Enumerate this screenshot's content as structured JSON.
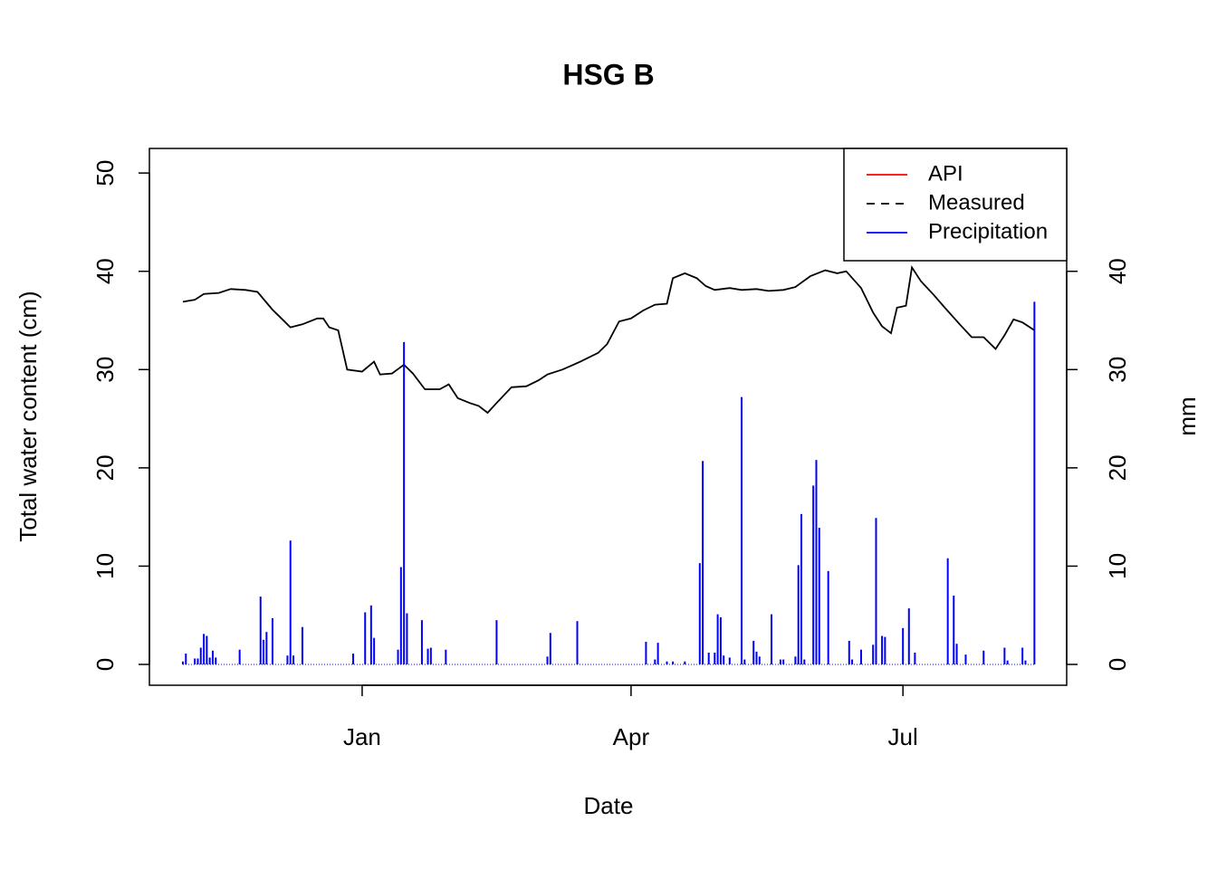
{
  "chart_data": {
    "type": "line",
    "title": "HSG B",
    "x_label": "Date",
    "y_label": "Total water content (cm)",
    "y2_label": "mm",
    "xlim": [
      -11.2,
      295.8
    ],
    "xticks": [
      {
        "value": 60,
        "label": "Jan"
      },
      {
        "value": 150,
        "label": "Apr"
      },
      {
        "value": 241,
        "label": "Jul"
      }
    ],
    "ylim": [
      -2.12,
      52.5
    ],
    "yticks": [
      0,
      10,
      20,
      30,
      40,
      50
    ],
    "y2lim": [
      -2.12,
      52.5
    ],
    "y2ticks": [
      0,
      10,
      20,
      30,
      40
    ],
    "legend": {
      "position": "topright",
      "items": [
        {
          "name": "API",
          "color": "#ff0000",
          "dash": false
        },
        {
          "name": "Measured",
          "color": "#000000",
          "dash": true
        },
        {
          "name": "Precipitation",
          "color": "#0000ff",
          "dash": false
        }
      ]
    },
    "series": [
      {
        "type": "line",
        "color": "#000000",
        "x": [
          0,
          4,
          7,
          12,
          16,
          21,
          25,
          30,
          33,
          36,
          40,
          45,
          47,
          49,
          52,
          55,
          60,
          64,
          66,
          70,
          74,
          77,
          81,
          86,
          89,
          92,
          96,
          99,
          102,
          105,
          110,
          115,
          119,
          122,
          127,
          133,
          139,
          142,
          146,
          150,
          154,
          158,
          162,
          164,
          168,
          172,
          175,
          178,
          183,
          187,
          192,
          196,
          201,
          205,
          210,
          215,
          219,
          222,
          227,
          231,
          234,
          237,
          239,
          242,
          244,
          247,
          251,
          255,
          260,
          264,
          268,
          272,
          275,
          278,
          281,
          285
        ],
        "values": [
          36.9,
          37.1,
          37.7,
          37.8,
          38.2,
          38.1,
          37.9,
          36.1,
          35.2,
          34.3,
          34.6,
          35.2,
          35.2,
          34.3,
          34.0,
          30.0,
          29.8,
          30.8,
          29.5,
          29.6,
          30.5,
          29.6,
          28.0,
          28.0,
          28.5,
          27.1,
          26.6,
          26.3,
          25.6,
          26.6,
          28.2,
          28.3,
          28.9,
          29.5,
          30.0,
          30.8,
          31.7,
          32.6,
          34.9,
          35.2,
          36.0,
          36.6,
          36.7,
          39.3,
          39.8,
          39.3,
          38.5,
          38.1,
          38.3,
          38.1,
          38.2,
          38.0,
          38.1,
          38.4,
          39.5,
          40.1,
          39.8,
          40.0,
          38.3,
          35.8,
          34.4,
          33.7,
          36.3,
          36.5,
          40.4,
          39.0,
          37.7,
          36.3,
          34.6,
          33.3,
          33.3,
          32.1,
          33.5,
          35.1,
          34.8,
          34.0
        ]
      },
      {
        "type": "bar",
        "axis": "y2",
        "color": "#0000ff",
        "x": [
          0,
          1,
          4,
          5,
          6,
          7,
          8,
          9,
          10,
          11,
          19,
          26,
          27,
          28,
          30,
          35,
          36,
          37,
          40,
          57,
          61,
          63,
          64,
          72,
          73,
          74,
          75,
          80,
          82,
          83,
          88,
          105,
          122,
          123,
          132,
          155,
          158,
          159,
          162,
          164,
          168,
          173,
          174,
          176,
          178,
          179,
          180,
          181,
          183,
          187,
          188,
          191,
          192,
          193,
          197,
          200,
          201,
          205,
          206,
          207,
          208,
          211,
          212,
          213,
          216,
          223,
          224,
          227,
          231,
          232,
          234,
          235,
          241,
          243,
          245,
          256,
          258,
          259,
          262,
          268,
          275,
          276,
          281,
          282,
          285
        ],
        "values": [
          0.3,
          1.1,
          0.6,
          0.6,
          1.7,
          3.1,
          2.9,
          0.7,
          1.4,
          0.7,
          1.5,
          6.9,
          2.5,
          3.3,
          4.7,
          0.9,
          12.6,
          0.9,
          3.8,
          1.1,
          5.3,
          6.0,
          2.7,
          1.5,
          9.9,
          32.8,
          5.2,
          4.5,
          1.6,
          1.7,
          1.5,
          4.5,
          0.8,
          3.2,
          4.4,
          2.3,
          0.5,
          2.2,
          0.3,
          0.3,
          0.3,
          10.3,
          20.7,
          1.2,
          1.2,
          5.1,
          4.8,
          0.9,
          0.7,
          27.2,
          0.5,
          2.4,
          1.3,
          0.8,
          5.1,
          0.5,
          0.5,
          0.8,
          10.1,
          15.3,
          0.5,
          18.2,
          20.8,
          13.9,
          9.5,
          2.4,
          0.5,
          1.5,
          2.0,
          14.9,
          2.9,
          2.8,
          3.7,
          5.7,
          1.2,
          10.8,
          7.0,
          2.1,
          1.0,
          1.4,
          1.7,
          0.4,
          1.7,
          0.4,
          36.9
        ]
      }
    ]
  }
}
